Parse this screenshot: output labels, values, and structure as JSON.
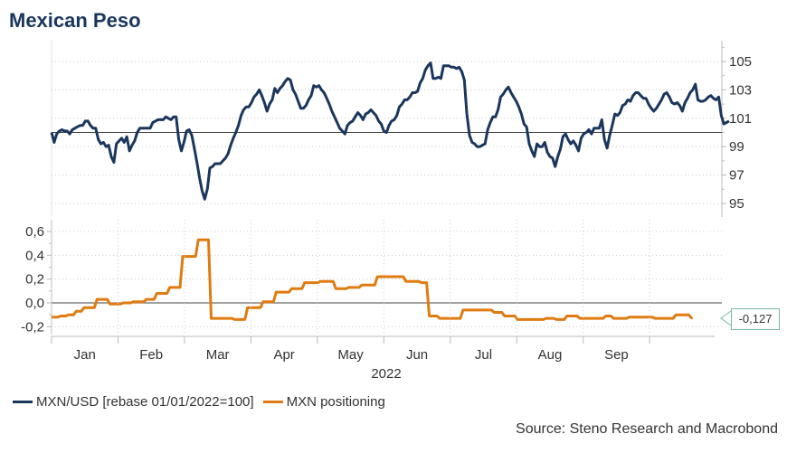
{
  "title": "Mexican Peso",
  "legend": {
    "series1": "MXN/USD [rebase 01/01/2022=100]",
    "series2": "MXN positioning"
  },
  "source": "Source: Steno Research and Macrobond",
  "callout": "-0,127",
  "colors": {
    "navy": "#1b365d",
    "orange": "#e07b10",
    "grid": "#bbbbbb",
    "callout_border": "#7ab89b"
  },
  "chart_data": [
    {
      "type": "line",
      "name": "MXN/USD [rebase 01/01/2022=100]",
      "x_range": [
        0,
        253
      ],
      "ylim": [
        94,
        107
      ],
      "yticks": [
        "95",
        "97",
        "99",
        "101",
        "103",
        "105"
      ],
      "reference_line": 100,
      "values": [
        100.0,
        99.3,
        99.9,
        100.1,
        100.2,
        100.1,
        100.1,
        99.9,
        100.2,
        100.3,
        100.4,
        100.5,
        100.5,
        100.8,
        100.8,
        100.5,
        100.3,
        100.3,
        99.5,
        99.2,
        99.3,
        99.0,
        99.1,
        98.3,
        97.9,
        99.2,
        99.4,
        99.6,
        99.3,
        99.7,
        98.7,
        99.1,
        99.4,
        100.0,
        100.3,
        100.3,
        100.3,
        100.3,
        100.3,
        100.7,
        100.8,
        100.9,
        100.9,
        100.9,
        101.1,
        101.0,
        100.9,
        101.1,
        101.1,
        99.5,
        98.7,
        99.3,
        100.1,
        100.2,
        99.8,
        98.9,
        97.9,
        96.8,
        95.9,
        95.3,
        96.0,
        97.5,
        97.6,
        97.8,
        97.8,
        97.8,
        98.0,
        98.2,
        98.5,
        99.1,
        99.6,
        100.0,
        100.5,
        101.2,
        101.6,
        101.8,
        101.8,
        102.1,
        102.5,
        102.7,
        103.0,
        102.6,
        102.1,
        101.5,
        102.0,
        102.3,
        103.1,
        102.8,
        103.1,
        103.3,
        103.6,
        103.8,
        103.7,
        103.0,
        102.7,
        102.2,
        101.7,
        101.7,
        101.9,
        102.3,
        102.6,
        103.3,
        103.2,
        103.3,
        103.0,
        102.8,
        102.4,
        102.0,
        101.5,
        101.1,
        100.7,
        100.3,
        100.1,
        99.9,
        100.5,
        100.7,
        100.8,
        101.1,
        101.4,
        101.2,
        100.9,
        101.3,
        101.4,
        101.6,
        101.4,
        101.2,
        100.8,
        100.6,
        100.1,
        100.0,
        100.5,
        100.8,
        100.9,
        101.2,
        101.8,
        102.0,
        102.3,
        102.3,
        102.5,
        102.8,
        102.8,
        102.9,
        103.5,
        103.8,
        104.4,
        104.7,
        104.9,
        103.8,
        103.8,
        103.9,
        103.8,
        104.7,
        104.7,
        104.7,
        104.6,
        104.6,
        104.5,
        104.6,
        104.3,
        103.7,
        101.3,
        99.8,
        99.3,
        99.2,
        99.0,
        99.0,
        99.1,
        99.2,
        100.2,
        100.7,
        101.1,
        101.1,
        101.6,
        102.5,
        102.7,
        103.0,
        103.2,
        102.8,
        102.5,
        102.2,
        101.8,
        101.3,
        100.6,
        100.4,
        99.2,
        98.7,
        98.3,
        99.2,
        99.0,
        99.0,
        99.3,
        98.6,
        98.3,
        98.2,
        97.6,
        98.3,
        98.8,
        99.7,
        99.9,
        99.5,
        99.2,
        99.4,
        99.1,
        98.7,
        99.6,
        99.9,
        100.0,
        100.2,
        99.9,
        100.3,
        100.3,
        100.3,
        100.9,
        99.5,
        98.9,
        99.8,
        100.5,
        101.3,
        101.2,
        101.4,
        101.9,
        102.0,
        102.3,
        102.2,
        102.6,
        102.8,
        102.8,
        102.6,
        102.4,
        102.4,
        102.0,
        101.7,
        101.5,
        101.7,
        102.0,
        102.3,
        102.7,
        102.8,
        102.5,
        102.1,
        102.0,
        102.1,
        101.9,
        101.5,
        102.1,
        102.4,
        102.8,
        103.0,
        103.4,
        102.3,
        102.2,
        102.2,
        102.3,
        102.5,
        102.6,
        102.4,
        102.3,
        102.5,
        101.2,
        100.6,
        100.7,
        100.8
      ]
    },
    {
      "type": "line",
      "name": "MXN positioning",
      "ylim": [
        -0.25,
        0.65
      ],
      "yticks": [
        "-0,2",
        "0,0",
        "0,2",
        "0,4",
        "0,6"
      ],
      "last_value_label": "-0,127",
      "steps": [
        [
          0,
          -0.12
        ],
        [
          3,
          -0.11
        ],
        [
          6,
          -0.1
        ],
        [
          9,
          -0.07
        ],
        [
          12,
          -0.04
        ],
        [
          15,
          -0.04
        ],
        [
          17,
          0.03
        ],
        [
          22,
          -0.01
        ],
        [
          27,
          0.0
        ],
        [
          31,
          0.01
        ],
        [
          36,
          0.03
        ],
        [
          40,
          0.08
        ],
        [
          45,
          0.13
        ],
        [
          50,
          0.39
        ],
        [
          56,
          0.53
        ],
        [
          61,
          -0.13
        ],
        [
          66,
          -0.13
        ],
        [
          70,
          -0.14
        ],
        [
          75,
          -0.04
        ],
        [
          81,
          0.01
        ],
        [
          86,
          0.09
        ],
        [
          92,
          0.12
        ],
        [
          97,
          0.17
        ],
        [
          103,
          0.18
        ],
        [
          109,
          0.12
        ],
        [
          114,
          0.13
        ],
        [
          119,
          0.15
        ],
        [
          125,
          0.22
        ],
        [
          131,
          0.22
        ],
        [
          136,
          0.18
        ],
        [
          142,
          0.17
        ],
        [
          145,
          -0.11
        ],
        [
          149,
          -0.13
        ],
        [
          154,
          -0.13
        ],
        [
          158,
          -0.06
        ],
        [
          164,
          -0.06
        ],
        [
          170,
          -0.08
        ],
        [
          174,
          -0.11
        ],
        [
          179,
          -0.14
        ],
        [
          184,
          -0.14
        ],
        [
          190,
          -0.13
        ],
        [
          194,
          -0.14
        ],
        [
          198,
          -0.11
        ],
        [
          203,
          -0.13
        ],
        [
          208,
          -0.13
        ],
        [
          213,
          -0.11
        ],
        [
          216,
          -0.13
        ],
        [
          222,
          -0.12
        ],
        [
          228,
          -0.12
        ],
        [
          232,
          -0.13
        ],
        [
          236,
          -0.13
        ],
        [
          240,
          -0.1
        ],
        [
          246,
          -0.127
        ]
      ],
      "x_range": [
        0,
        253
      ]
    }
  ],
  "x_axis": {
    "months": [
      "Jan",
      "Feb",
      "Mar",
      "Apr",
      "May",
      "Jun",
      "Jul",
      "Aug",
      "Sep"
    ],
    "year": "2022"
  }
}
